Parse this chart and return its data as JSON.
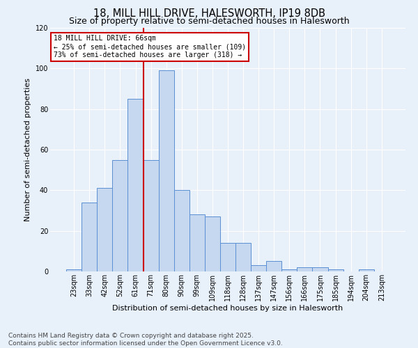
{
  "title": "18, MILL HILL DRIVE, HALESWORTH, IP19 8DB",
  "subtitle": "Size of property relative to semi-detached houses in Halesworth",
  "xlabel": "Distribution of semi-detached houses by size in Halesworth",
  "ylabel": "Number of semi-detached properties",
  "categories": [
    "23sqm",
    "33sqm",
    "42sqm",
    "52sqm",
    "61sqm",
    "71sqm",
    "80sqm",
    "90sqm",
    "99sqm",
    "109sqm",
    "118sqm",
    "128sqm",
    "137sqm",
    "147sqm",
    "156sqm",
    "166sqm",
    "175sqm",
    "185sqm",
    "194sqm",
    "204sqm",
    "213sqm"
  ],
  "values": [
    1,
    34,
    41,
    55,
    85,
    55,
    99,
    40,
    28,
    27,
    14,
    14,
    3,
    5,
    1,
    2,
    2,
    1,
    0,
    1,
    0
  ],
  "bar_color": "#c5d8f0",
  "bar_edge_color": "#5b8fd4",
  "background_color": "#e8f0fa",
  "grid_color": "#ffffff",
  "red_line_x": 4.5,
  "annotation_title": "18 MILL HILL DRIVE: 66sqm",
  "annotation_line1": "← 25% of semi-detached houses are smaller (109)",
  "annotation_line2": "73% of semi-detached houses are larger (318) →",
  "annotation_box_color": "#ffffff",
  "annotation_border_color": "#cc0000",
  "red_line_color": "#cc0000",
  "ylim": [
    0,
    120
  ],
  "yticks": [
    0,
    20,
    40,
    60,
    80,
    100,
    120
  ],
  "footer_line1": "Contains HM Land Registry data © Crown copyright and database right 2025.",
  "footer_line2": "Contains public sector information licensed under the Open Government Licence v3.0.",
  "title_fontsize": 10.5,
  "subtitle_fontsize": 9,
  "axis_label_fontsize": 8,
  "tick_fontsize": 7,
  "annotation_fontsize": 7,
  "footer_fontsize": 6.5
}
